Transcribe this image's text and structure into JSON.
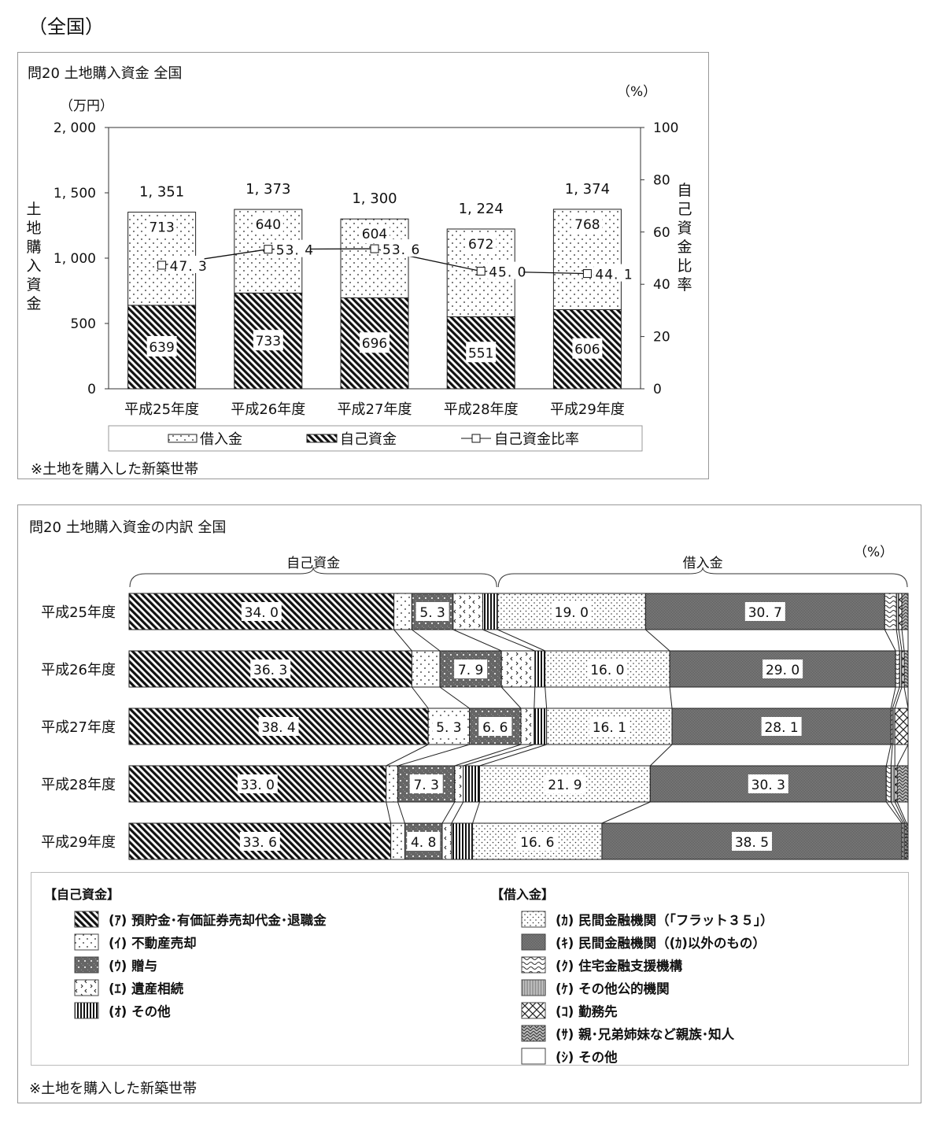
{
  "page_heading": "（全国）",
  "patterns": {
    "借入金": "dots-sparse",
    "自己資金": "diagonal-hatch",
    "ア": "diagonal-hatch",
    "イ": "dots-sparse",
    "ウ": "dark-dotted",
    "エ": "chevrons",
    "オ": "vertical-lines",
    "カ": "dots-dense",
    "キ": "gray-checker",
    "ク": "waves",
    "ケ": "fine-vertical",
    "コ": "crosshatch",
    "サ": "zigzag",
    "シ": "blank"
  },
  "chart_data": [
    {
      "type": "bar",
      "stacked": true,
      "title": "問20 土地購入資金 全国",
      "categories": [
        "平成25年度",
        "平成26年度",
        "平成27年度",
        "平成28年度",
        "平成29年度"
      ],
      "series": [
        {
          "name": "借入金",
          "values": [
            713,
            640,
            604,
            672,
            768
          ]
        },
        {
          "name": "自己資金",
          "values": [
            639,
            733,
            696,
            551,
            606
          ]
        },
        {
          "name": "自己資金比率",
          "type": "line",
          "axis": "right",
          "values": [
            47.3,
            53.4,
            53.6,
            45.0,
            44.1
          ]
        }
      ],
      "totals": [
        1351,
        1373,
        1300,
        1224,
        1374
      ],
      "ylabel": "土地購入資金",
      "yunit": "（万円）",
      "ylim": [
        0,
        2000
      ],
      "yticks": [
        "0",
        "500",
        "1, 000",
        "1, 500",
        "2, 000"
      ],
      "y2label": "自己資金比率",
      "y2unit": "（%）",
      "y2lim": [
        0,
        100
      ],
      "y2ticks": [
        "0",
        "20",
        "40",
        "60",
        "80",
        "100"
      ],
      "legend_position": "bottom",
      "note": "※土地を購入した新築世帯"
    },
    {
      "type": "bar",
      "orientation": "horizontal",
      "stacked": true,
      "percent": true,
      "title": "問20 土地購入資金の内訳 全国",
      "unit": "（%）",
      "groups": [
        {
          "label": "自己資金",
          "keys": [
            "ア",
            "イ",
            "ウ",
            "エ",
            "オ"
          ]
        },
        {
          "label": "借入金",
          "keys": [
            "カ",
            "キ",
            "ク",
            "ケ",
            "コ",
            "サ",
            "シ"
          ]
        }
      ],
      "categories": [
        "平成25年度",
        "平成26年度",
        "平成27年度",
        "平成28年度",
        "平成29年度"
      ],
      "series": [
        {
          "key": "ア",
          "name": "(ｱ) 預貯金･有価証券売却代金･退職金",
          "values": [
            34.0,
            36.3,
            38.4,
            33.0,
            33.6
          ]
        },
        {
          "key": "イ",
          "name": "(ｲ) 不動産売却",
          "values": [
            2.3,
            3.6,
            5.3,
            1.5,
            1.8
          ]
        },
        {
          "key": "ウ",
          "name": "(ｳ) 贈与",
          "values": [
            5.3,
            7.9,
            6.6,
            7.3,
            4.8
          ]
        },
        {
          "key": "エ",
          "name": "(ｴ) 遺産相続",
          "values": [
            3.8,
            4.3,
            1.7,
            1.1,
            1.2
          ]
        },
        {
          "key": "オ",
          "name": "(ｵ) その他",
          "values": [
            1.9,
            1.3,
            1.6,
            2.1,
            2.7
          ]
        },
        {
          "key": "カ",
          "name": "(ｶ) 民間金融機関（「フラット３５」）",
          "values": [
            19.0,
            16.0,
            16.1,
            21.9,
            16.6
          ]
        },
        {
          "key": "キ",
          "name": "(ｷ) 民間金融機関（(ｶ)以外のもの）",
          "values": [
            30.7,
            29.0,
            28.1,
            30.3,
            38.5
          ]
        },
        {
          "key": "ク",
          "name": "(ｸ) 住宅金融支援機構",
          "values": [
            1.5,
            0.5,
            0.2,
            0.6,
            0.2
          ]
        },
        {
          "key": "ケ",
          "name": "(ｹ) その他公的機関",
          "values": [
            0.3,
            0.3,
            0.3,
            0.5,
            0.2
          ]
        },
        {
          "key": "コ",
          "name": "(ｺ) 勤務先",
          "values": [
            0.4,
            0.3,
            1.7,
            0.3,
            0.2
          ]
        },
        {
          "key": "サ",
          "name": "(ｻ) 親･兄弟姉妹など親族･知人",
          "values": [
            0.8,
            0.5,
            0.0,
            1.4,
            0.2
          ]
        },
        {
          "key": "シ",
          "name": "(ｼ) その他",
          "values": [
            0.0,
            0.0,
            0.0,
            0.0,
            0.0
          ]
        }
      ],
      "labeled_values": {
        "ア": [
          34.0,
          36.3,
          38.4,
          33.0,
          33.6
        ],
        "イ": [
          null,
          null,
          5.3,
          null,
          null
        ],
        "ウ": [
          5.3,
          7.9,
          6.6,
          7.3,
          4.8
        ],
        "カ": [
          19.0,
          16.0,
          16.1,
          21.9,
          16.6
        ],
        "キ": [
          30.7,
          29.0,
          28.1,
          30.3,
          38.5
        ]
      },
      "xlim": [
        0,
        100
      ],
      "legend": {
        "left_heading": "【自己資金】",
        "right_heading": "【借入金】"
      },
      "note": "※土地を購入した新築世帯"
    }
  ]
}
